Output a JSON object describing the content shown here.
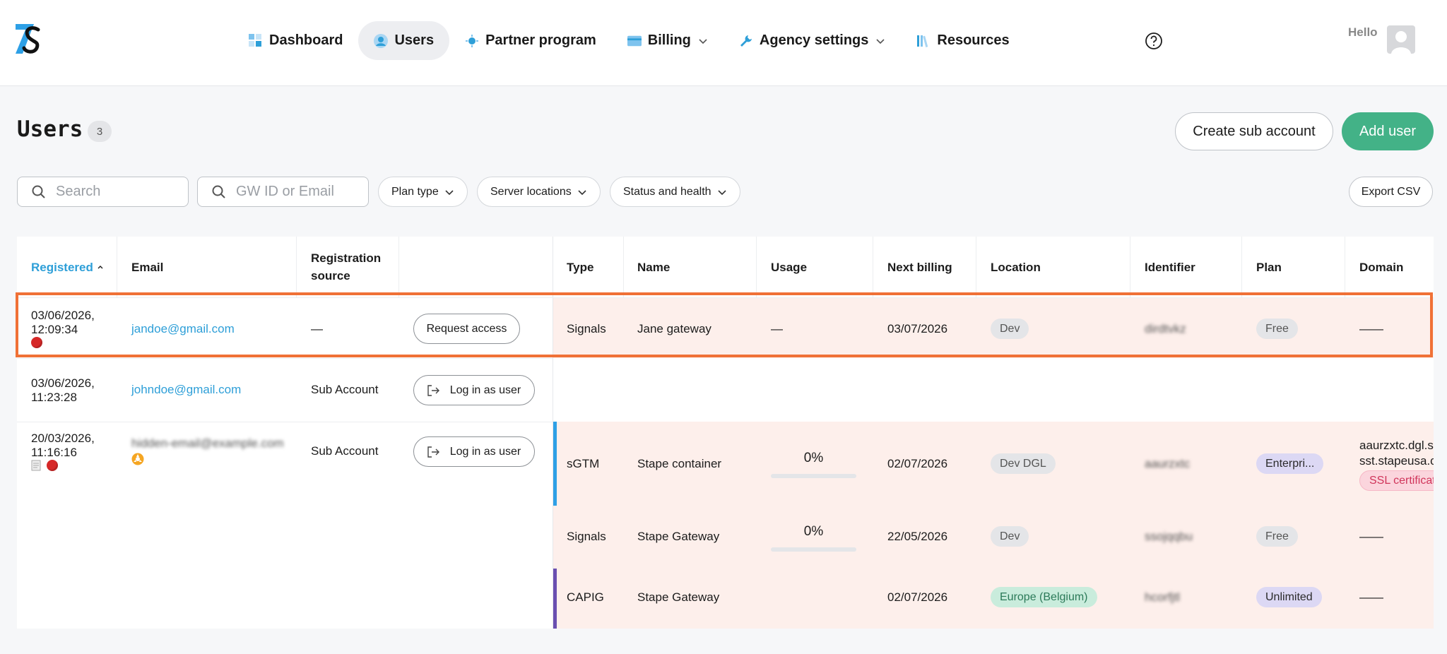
{
  "nav": {
    "items": [
      {
        "label": "Dashboard",
        "icon": "dashboard-icon"
      },
      {
        "label": "Users",
        "icon": "user-icon",
        "active": true
      },
      {
        "label": "Partner program",
        "icon": "partner-icon"
      },
      {
        "label": "Billing",
        "icon": "card-icon",
        "dropdown": true
      },
      {
        "label": "Agency settings",
        "icon": "wrench-icon",
        "dropdown": true
      },
      {
        "label": "Resources",
        "icon": "books-icon"
      }
    ],
    "greeting": "Hello"
  },
  "page": {
    "title": "Users",
    "count": "3",
    "create_sub_account": "Create sub account",
    "add_user": "Add user"
  },
  "filters": {
    "search_placeholder": "Search",
    "gw_placeholder": "GW ID or Email",
    "plan_type": "Plan type",
    "server_locations": "Server locations",
    "status_health": "Status and health",
    "export": "Export CSV"
  },
  "table": {
    "headers": {
      "registered": "Registered",
      "email": "Email",
      "registration_source": "Registration source",
      "type": "Type",
      "name": "Name",
      "usage": "Usage",
      "next_billing": "Next billing",
      "location": "Location",
      "identifier": "Identifier",
      "plan": "Plan",
      "domain": "Domain"
    },
    "users": [
      {
        "date": "03/06/2026,",
        "time": "12:09:34",
        "email": "jandoe@gmail.com",
        "source": "—",
        "action": "Request access",
        "containers": [
          {
            "type": "Signals",
            "name": "Jane gateway",
            "usage": "—",
            "next_billing": "03/07/2026",
            "location": "Dev",
            "identifier": "dirdtvkz",
            "plan": "Free",
            "domain": "——"
          }
        ]
      },
      {
        "date": "03/06/2026,",
        "time": "11:23:28",
        "email": "johndoe@gmail.com",
        "source": "Sub Account",
        "action": "Log in as user",
        "containers": []
      },
      {
        "date": "20/03/2026,",
        "time": "11:16:16",
        "email": "hidden-email@example.com",
        "source": "Sub Account",
        "action": "Log in as user",
        "containers": [
          {
            "type": "sGTM",
            "name": "Stape container",
            "usage": "0%",
            "next_billing": "02/07/2026",
            "location": "Dev DGL",
            "identifier": "aaurzxtc",
            "plan": "Enterpri...",
            "domain_1": "aaurzxtc.dgl.st",
            "domain_2": "sst.stapeusa.c",
            "domain_badge": "SSL certificat"
          },
          {
            "type": "Signals",
            "name": "Stape Gateway",
            "usage": "0%",
            "next_billing": "22/05/2026",
            "location": "Dev",
            "identifier": "ssojqqbu",
            "plan": "Free",
            "domain": "——"
          },
          {
            "type": "CAPIG",
            "name": "Stape Gateway",
            "usage": "",
            "next_billing": "02/07/2026",
            "location": "Europe (Belgium)",
            "identifier": "hcorfjtl",
            "plan": "Unlimited",
            "domain": "——"
          }
        ]
      }
    ]
  },
  "colors": {
    "accent_blue": "#2e9fd8",
    "green": "#43b287",
    "highlight": "#f07136",
    "row_pink": "#fdefeb",
    "sgtm_bar": "#2ea0e6",
    "capig_bar": "#6a4fb0"
  }
}
